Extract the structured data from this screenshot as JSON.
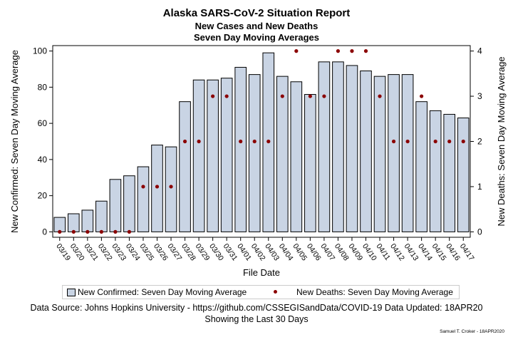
{
  "titles": {
    "title": "Alaska SARS-CoV-2 Situation Report",
    "subtitle1": "New Cases and New Deaths",
    "subtitle2": "Seven Day Moving Averages"
  },
  "chart_data": {
    "type": "bar",
    "xlabel": "File Date",
    "ylabel_left": "New Confirmed: Seven Day Moving Average",
    "ylabel_right": "New Deaths: Seven Day Moving Average",
    "ylim_left": [
      0,
      100
    ],
    "ylim_right": [
      0,
      4
    ],
    "yticks_left": [
      0,
      20,
      40,
      60,
      80,
      100
    ],
    "yticks_right": [
      0,
      1,
      2,
      3,
      4
    ],
    "categories": [
      "03/19",
      "03/20",
      "03/21",
      "03/22",
      "03/23",
      "03/24",
      "03/25",
      "03/26",
      "03/27",
      "03/28",
      "03/29",
      "03/30",
      "03/31",
      "04/01",
      "04/02",
      "04/03",
      "04/04",
      "04/05",
      "04/06",
      "04/07",
      "04/08",
      "04/09",
      "04/10",
      "04/11",
      "04/12",
      "04/13",
      "04/14",
      "04/15",
      "04/16",
      "04/17"
    ],
    "series": [
      {
        "name": "New Confirmed: Seven Day Moving Average",
        "kind": "bar",
        "axis": "left",
        "color": "#c9d4e4",
        "values": [
          8,
          10,
          12,
          17,
          29,
          31,
          36,
          48,
          47,
          72,
          84,
          84,
          85,
          91,
          87,
          99,
          86,
          83,
          76,
          94,
          94,
          92,
          89,
          86,
          87,
          87,
          72,
          67,
          65,
          63
        ]
      },
      {
        "name": "New Deaths: Seven Day Moving Average",
        "kind": "scatter",
        "axis": "right",
        "color": "#8b0000",
        "values": [
          0,
          0,
          0,
          0,
          0,
          0,
          1,
          1,
          1,
          2,
          2,
          3,
          3,
          2,
          2,
          2,
          3,
          4,
          3,
          3,
          4,
          4,
          4,
          3,
          2,
          2,
          3,
          2,
          2,
          2
        ]
      }
    ],
    "legend_position": "bottom"
  },
  "footer": {
    "source": "Data Source: Johns Hopkins University - https://github.com/CSSEGISandData/COVID-19 Data Updated: 18APR20",
    "period": "Showing the Last 30 Days",
    "signature": "Samuel T. Croker - 18APR2020"
  }
}
